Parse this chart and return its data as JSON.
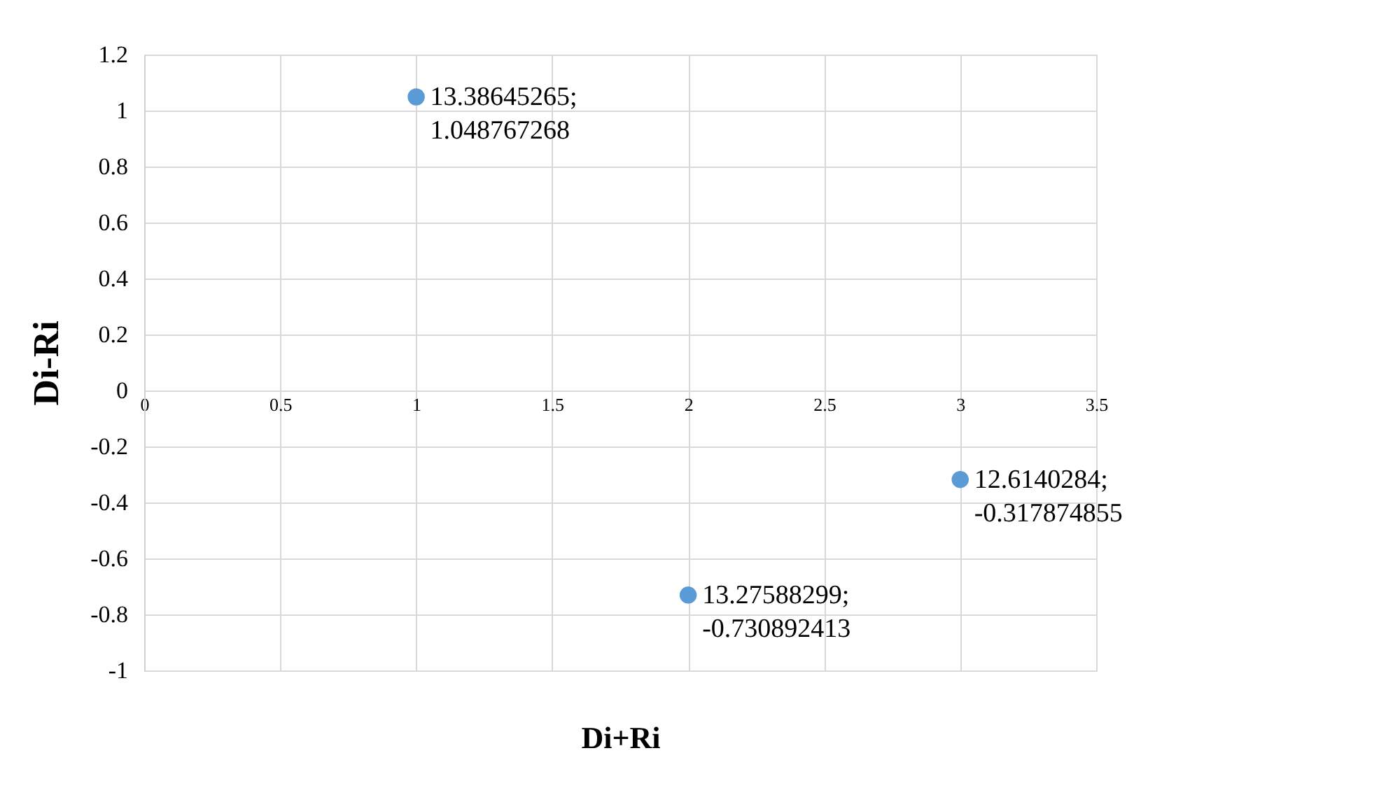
{
  "chart_data": {
    "type": "scatter",
    "xlabel": "Di+Ri",
    "ylabel": "Di-Ri",
    "x": [
      1,
      2,
      3
    ],
    "series": [
      {
        "color": "#5b9bd5",
        "values": [
          1.048767268,
          -0.730892413,
          -0.317874855
        ],
        "value_labels": [
          "13.38645265; 1.048767268",
          "13.27588299; -0.730892413",
          "12.6140284; -0.317874855"
        ]
      }
    ],
    "xlim": [
      0,
      3.5
    ],
    "xticks": [
      0,
      0.5,
      1,
      1.5,
      2,
      2.5,
      3,
      3.5
    ],
    "ylim": [
      -1,
      1.2
    ],
    "yticks": [
      -1,
      -0.8,
      -0.6,
      -0.4,
      -0.2,
      0,
      0.2,
      0.4,
      0.6,
      0.8,
      1,
      1.2
    ],
    "grid": true,
    "marker": "circle"
  }
}
